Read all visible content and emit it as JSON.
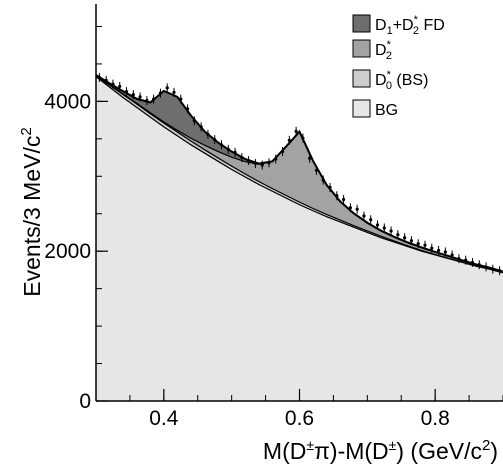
{
  "chart_data": {
    "type": "area",
    "xlabel": "M(D±π)-M(D±) (GeV/c²)",
    "ylabel": "Events/3 MeV/c²",
    "xlim": [
      0.3,
      0.9
    ],
    "ylim": [
      0,
      5300
    ],
    "x_ticks": [
      {
        "value": 0.4,
        "label": "0.4"
      },
      {
        "value": 0.6,
        "label": "0.6"
      },
      {
        "value": 0.8,
        "label": "0.8"
      }
    ],
    "y_ticks": [
      {
        "value": 0,
        "label": "0"
      },
      {
        "value": 2000,
        "label": "2000"
      },
      {
        "value": 4000,
        "label": "4000"
      }
    ],
    "legend_position": "top-right",
    "legend": [
      {
        "key": "fd",
        "label": "D1+D2* FD",
        "color": "#6e6e6e"
      },
      {
        "key": "d2",
        "label": "D2*",
        "color": "#a3a3a3"
      },
      {
        "key": "d0",
        "label": "D0* (BS)",
        "color": "#cdcdcd"
      },
      {
        "key": "bg",
        "label": "BG",
        "color": "#e6e6e6"
      }
    ],
    "x": [
      0.3,
      0.32,
      0.34,
      0.36,
      0.38,
      0.4,
      0.42,
      0.44,
      0.46,
      0.48,
      0.5,
      0.52,
      0.54,
      0.56,
      0.58,
      0.6,
      0.62,
      0.64,
      0.66,
      0.68,
      0.7,
      0.72,
      0.74,
      0.76,
      0.78,
      0.8,
      0.82,
      0.84,
      0.86,
      0.88,
      0.9
    ],
    "series": [
      {
        "key": "bg",
        "name": "BG",
        "values": [
          4330,
          4190,
          4050,
          3920,
          3790,
          3660,
          3540,
          3420,
          3310,
          3200,
          3090,
          2990,
          2890,
          2800,
          2710,
          2620,
          2540,
          2460,
          2390,
          2320,
          2250,
          2180,
          2120,
          2060,
          2000,
          1950,
          1900,
          1850,
          1800,
          1760,
          1710
        ]
      },
      {
        "key": "d0",
        "name": "D0* (BS)",
        "values": [
          4340,
          4215,
          4090,
          3965,
          3835,
          3710,
          3590,
          3470,
          3355,
          3245,
          3135,
          3030,
          2930,
          2835,
          2745,
          2655,
          2570,
          2490,
          2415,
          2340,
          2270,
          2200,
          2135,
          2070,
          2010,
          1955,
          1905,
          1855,
          1805,
          1765,
          1715
        ]
      },
      {
        "key": "d2",
        "name": "D2*",
        "values": [
          4345,
          4222,
          4098,
          3975,
          3848,
          3725,
          3612,
          3508,
          3415,
          3330,
          3255,
          3195,
          3160,
          3195,
          3390,
          3590,
          3200,
          2880,
          2660,
          2500,
          2375,
          2270,
          2185,
          2110,
          2045,
          1985,
          1930,
          1873,
          1820,
          1778,
          1725
        ]
      },
      {
        "key": "fd",
        "name": "D1+D2* FD",
        "values": [
          4350,
          4240,
          4135,
          4035,
          3985,
          4140,
          4060,
          3810,
          3600,
          3450,
          3330,
          3230,
          3170,
          3200,
          3395,
          3595,
          3205,
          2885,
          2665,
          2505,
          2380,
          2275,
          2190,
          2115,
          2050,
          1990,
          1935,
          1878,
          1824,
          1781,
          1728
        ]
      }
    ],
    "data_points": {
      "x": [
        0.305,
        0.315,
        0.325,
        0.335,
        0.345,
        0.355,
        0.365,
        0.375,
        0.385,
        0.395,
        0.405,
        0.415,
        0.425,
        0.435,
        0.445,
        0.455,
        0.465,
        0.475,
        0.485,
        0.495,
        0.505,
        0.515,
        0.525,
        0.535,
        0.545,
        0.555,
        0.565,
        0.575,
        0.585,
        0.595,
        0.605,
        0.615,
        0.625,
        0.635,
        0.645,
        0.655,
        0.665,
        0.675,
        0.685,
        0.695,
        0.705,
        0.715,
        0.725,
        0.735,
        0.745,
        0.755,
        0.765,
        0.775,
        0.785,
        0.795,
        0.805,
        0.815,
        0.825,
        0.835,
        0.845,
        0.855,
        0.865,
        0.875,
        0.885,
        0.895
      ],
      "y": [
        4320,
        4280,
        4230,
        4200,
        4130,
        4090,
        4060,
        4010,
        4030,
        4110,
        4180,
        4120,
        4030,
        3900,
        3740,
        3660,
        3560,
        3490,
        3420,
        3360,
        3320,
        3250,
        3210,
        3170,
        3150,
        3180,
        3230,
        3330,
        3480,
        3600,
        3510,
        3240,
        3080,
        2950,
        2850,
        2740,
        2690,
        2580,
        2560,
        2470,
        2420,
        2350,
        2310,
        2270,
        2220,
        2180,
        2140,
        2100,
        2080,
        2040,
        2010,
        1990,
        1950,
        1900,
        1880,
        1850,
        1820,
        1790,
        1760,
        1740
      ],
      "err": 60
    }
  }
}
